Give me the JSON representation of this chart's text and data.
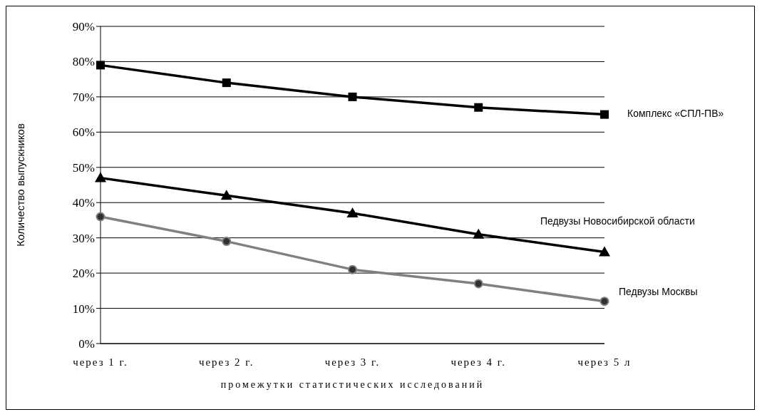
{
  "chart_data": {
    "type": "line",
    "xlabel": "промежутки статистических исследований",
    "ylabel": "Количество выпускников",
    "categories": [
      "через 1 г.",
      "через 2 г.",
      "через 3 г.",
      "через 4 г.",
      "через 5 л"
    ],
    "series": [
      {
        "name": "Комплекс «СПЛ-ПВ»",
        "color": "#000000",
        "marker": "square",
        "values": [
          79,
          74,
          70,
          67,
          65
        ]
      },
      {
        "name": "Педвузы Новосибирской области",
        "color": "#000000",
        "marker": "triangle",
        "values": [
          47,
          42,
          37,
          31,
          26
        ]
      },
      {
        "name": "Педвузы Москвы",
        "color": "#808080",
        "marker": "circle",
        "values": [
          36,
          29,
          21,
          17,
          12
        ]
      }
    ],
    "ylim": [
      0,
      90
    ],
    "yticks": [
      {
        "value": 0,
        "label": "0%"
      },
      {
        "value": 10,
        "label": "10%"
      },
      {
        "value": 20,
        "label": "20%"
      },
      {
        "value": 30,
        "label": "30%"
      },
      {
        "value": 40,
        "label": "40%"
      },
      {
        "value": 50,
        "label": "50%"
      },
      {
        "value": 60,
        "label": "60%"
      },
      {
        "value": 70,
        "label": "70%"
      },
      {
        "value": 80,
        "label": "80%"
      },
      {
        "value": 90,
        "label": "90%"
      }
    ],
    "grid": "y"
  }
}
